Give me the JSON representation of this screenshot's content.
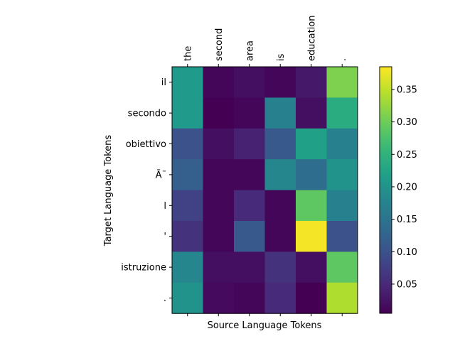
{
  "chart_data": {
    "type": "heatmap",
    "xlabel": "Source Language Tokens",
    "ylabel": "Target Language Tokens",
    "x_ticks": [
      "the",
      "second",
      "area",
      "is",
      "education",
      "."
    ],
    "y_ticks": [
      "il",
      "secondo",
      "obiettivo",
      "Ã¨",
      "l",
      "'",
      "istruzione",
      "."
    ],
    "values": [
      [
        0.21,
        0.01,
        0.02,
        0.01,
        0.03,
        0.31
      ],
      [
        0.21,
        0.005,
        0.01,
        0.17,
        0.02,
        0.24
      ],
      [
        0.1,
        0.02,
        0.04,
        0.11,
        0.22,
        0.17
      ],
      [
        0.12,
        0.01,
        0.01,
        0.18,
        0.14,
        0.2
      ],
      [
        0.08,
        0.01,
        0.05,
        0.01,
        0.29,
        0.17
      ],
      [
        0.06,
        0.01,
        0.11,
        0.01,
        0.38,
        0.1
      ],
      [
        0.18,
        0.02,
        0.02,
        0.06,
        0.02,
        0.29
      ],
      [
        0.2,
        0.015,
        0.01,
        0.05,
        0.005,
        0.34
      ]
    ],
    "colormap": "viridis",
    "colorbar": {
      "min": 0.005,
      "max": 0.385,
      "ticks": [
        "0.05",
        "0.10",
        "0.15",
        "0.20",
        "0.25",
        "0.30",
        "0.35"
      ],
      "tick_values": [
        0.05,
        0.1,
        0.15,
        0.2,
        0.25,
        0.3,
        0.35
      ]
    }
  }
}
